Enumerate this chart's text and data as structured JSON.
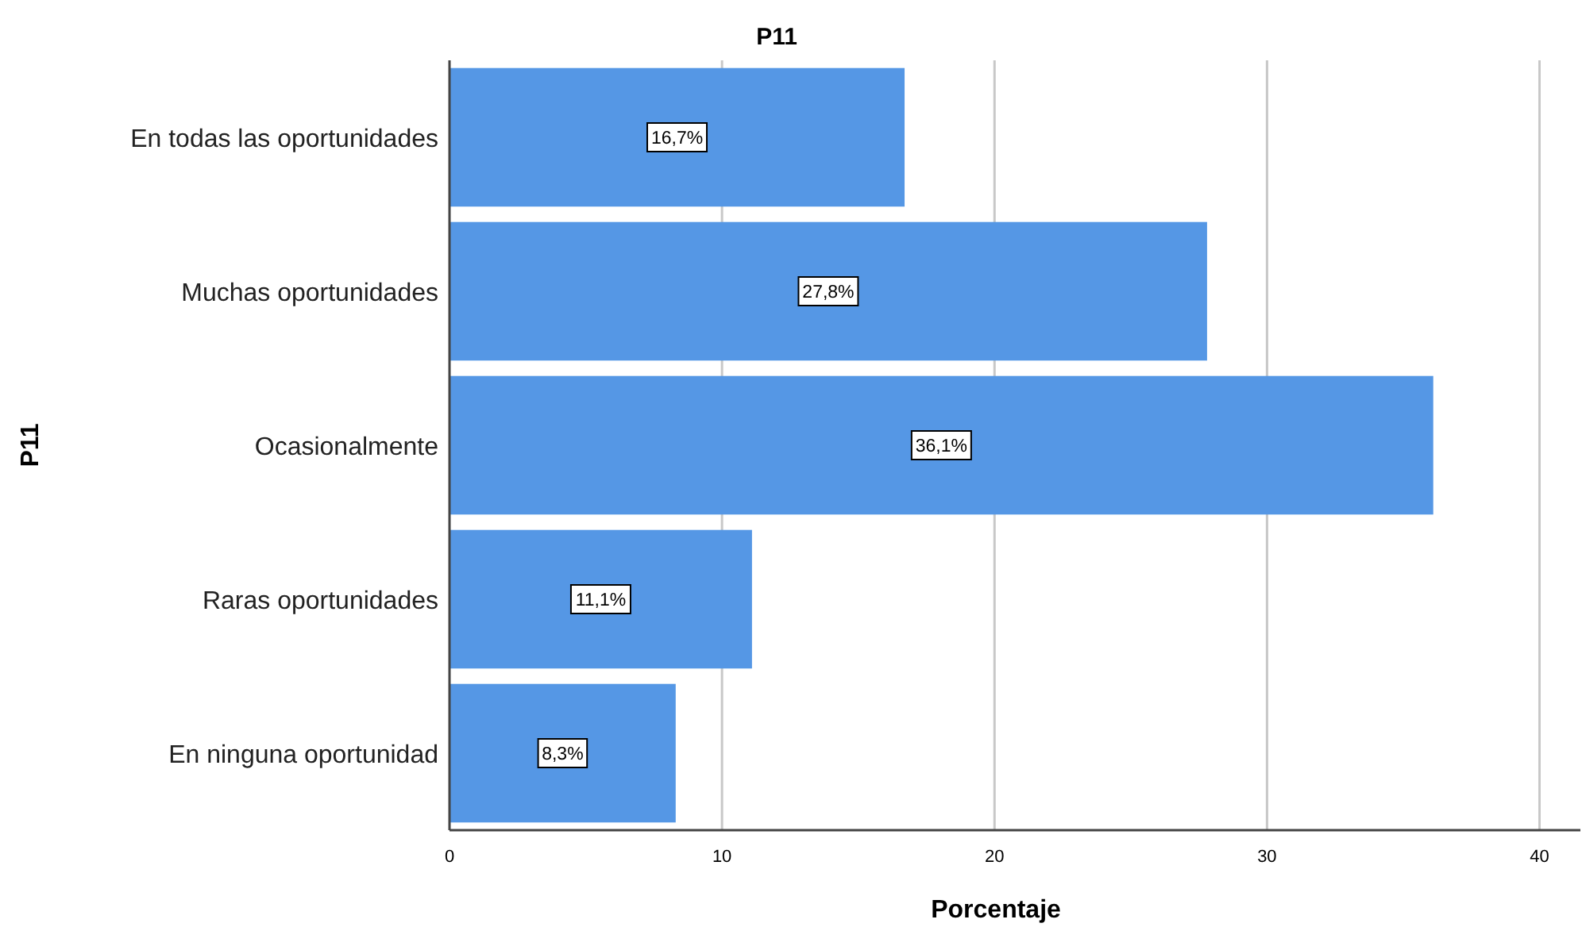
{
  "chart_data": {
    "type": "bar",
    "orientation": "horizontal",
    "title": "P11",
    "xlabel": "Porcentaje",
    "ylabel": "P11",
    "categories": [
      "En todas las oportunidades",
      "Muchas oportunidades",
      "Ocasionalmente",
      "Raras oportunidades",
      "En ninguna oportunidad"
    ],
    "values": [
      16.7,
      27.8,
      36.1,
      11.1,
      8.3
    ],
    "value_labels": [
      "16,7%",
      "27,8%",
      "36,1%",
      "11,1%",
      "8,3%"
    ],
    "color": "#5597e5",
    "xlim": [
      0,
      41.5
    ],
    "xticks": [
      0,
      10,
      20,
      30,
      40
    ],
    "grid": "x"
  }
}
